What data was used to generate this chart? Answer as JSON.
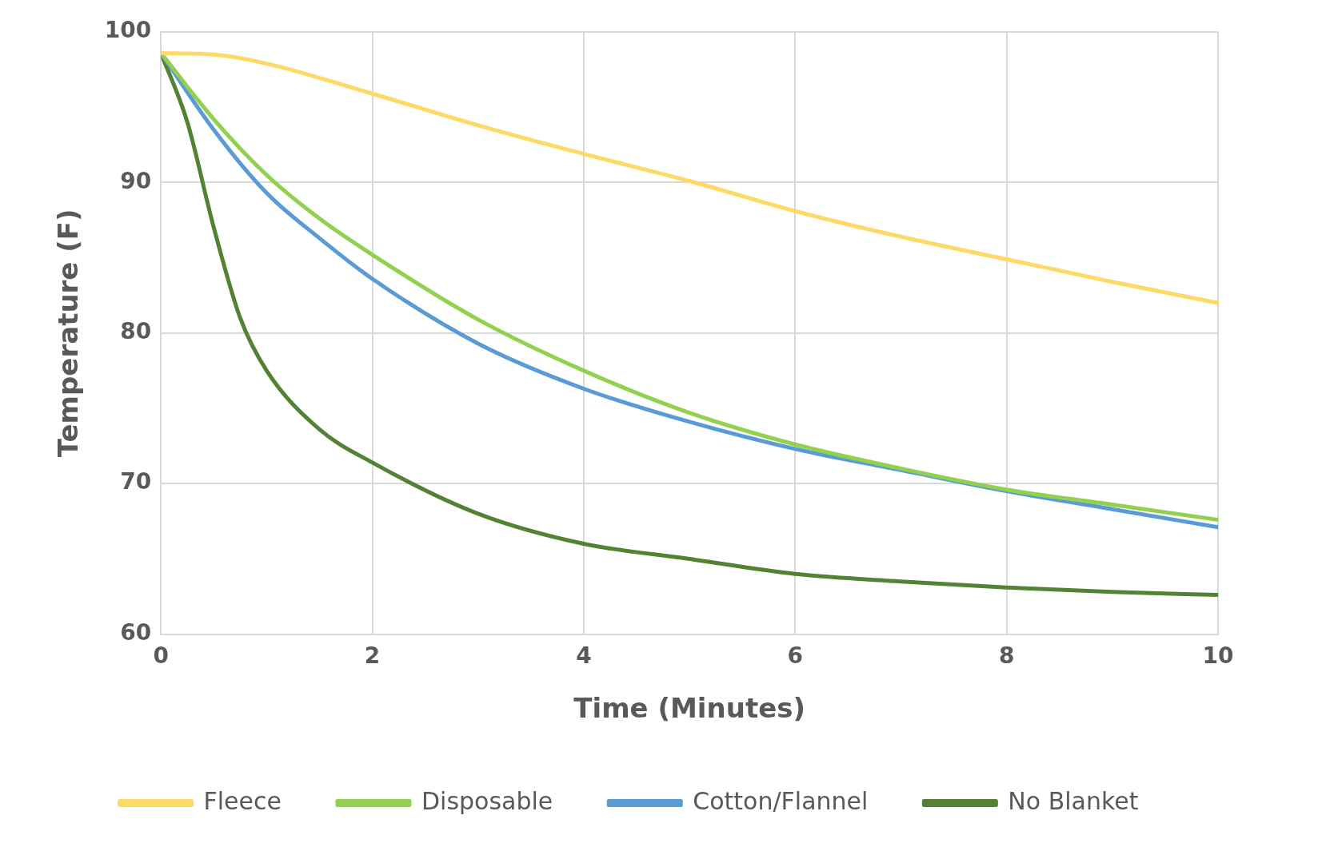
{
  "chart_data": {
    "type": "line",
    "xlabel": "Time (Minutes)",
    "ylabel": "Temperature (F)",
    "xlim": [
      0,
      10
    ],
    "xticks": [
      0,
      2,
      4,
      6,
      8,
      10
    ],
    "ylim": [
      60,
      100
    ],
    "yticks": [
      60,
      70,
      80,
      90,
      100
    ],
    "grid": true,
    "legend": "bottom",
    "marker": "none",
    "line_style": "solid",
    "series": [
      {
        "name": "Fleece",
        "color": "#ffd966",
        "x": [
          0,
          0.5,
          1,
          2,
          3,
          4,
          5,
          6,
          7,
          8,
          9,
          10
        ],
        "values": [
          98.6,
          98.5,
          97.9,
          95.9,
          93.8,
          91.9,
          90.1,
          88.1,
          86.4,
          84.9,
          83.4,
          82.0
        ]
      },
      {
        "name": "Disposable",
        "color": "#92d050",
        "x": [
          0,
          0.5,
          1,
          1.5,
          2,
          3,
          4,
          5,
          6,
          7,
          8,
          9,
          10
        ],
        "values": [
          98.6,
          94.2,
          90.5,
          87.6,
          85.2,
          80.9,
          77.5,
          74.7,
          72.6,
          71.0,
          69.6,
          68.6,
          67.6
        ]
      },
      {
        "name": "Cotton/Flannel",
        "color": "#5b9bd5",
        "x": [
          0,
          0.5,
          1,
          1.5,
          2,
          3,
          4,
          5,
          6,
          7,
          8,
          9,
          10
        ],
        "values": [
          98.6,
          93.5,
          89.3,
          86.3,
          83.6,
          79.3,
          76.3,
          74.1,
          72.3,
          70.9,
          69.5,
          68.3,
          67.1
        ]
      },
      {
        "name": "No Blanket",
        "color": "#548235",
        "x": [
          0,
          0.25,
          0.5,
          0.75,
          1,
          1.5,
          2,
          3,
          4,
          5,
          6,
          7,
          8,
          9,
          10
        ],
        "values": [
          98.6,
          94,
          87,
          81,
          77.5,
          73.6,
          71.4,
          68.0,
          66.0,
          65.0,
          64.0,
          63.5,
          63.1,
          62.8,
          62.6
        ]
      }
    ]
  }
}
